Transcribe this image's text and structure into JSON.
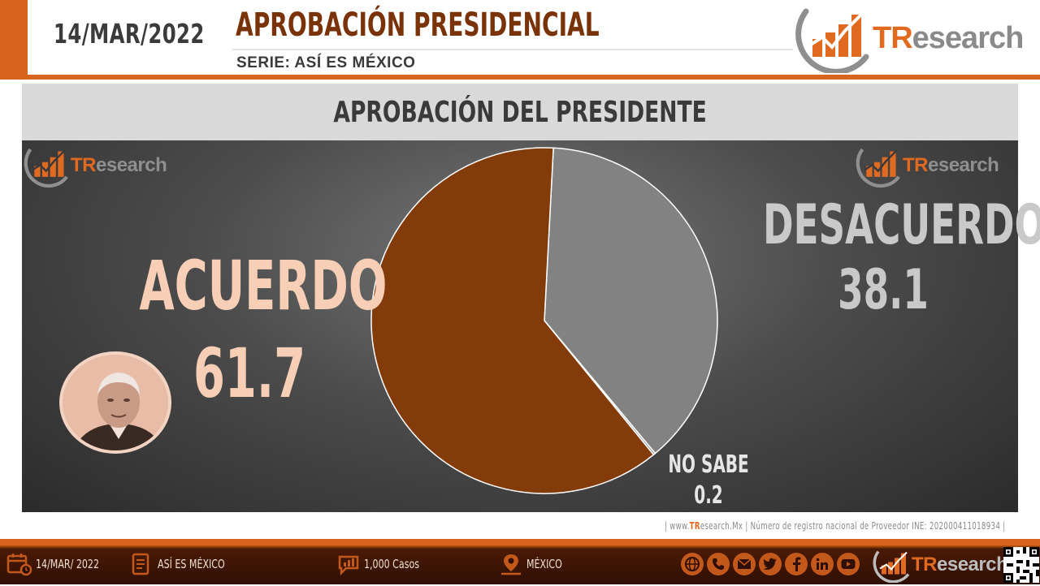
{
  "header": {
    "date": "14/MAR/2022",
    "title": "APROBACIÓN PRESIDENCIAL",
    "series": "SERIE: ASÍ ES MÉXICO"
  },
  "brand": {
    "logo_tr": "TR",
    "logo_rest": "esearch"
  },
  "chart_data": {
    "type": "pie",
    "title": "APROBACIÓN DEL PRESIDENTE",
    "categories": [
      "ACUERDO",
      "DESACUERDO",
      "NO SABE"
    ],
    "values": [
      61.7,
      38.1,
      0.2
    ],
    "value_labels": [
      "61.7",
      "38.1",
      "0.2"
    ],
    "colors": [
      "#843b0a",
      "#828282",
      "#9a9a9a"
    ]
  },
  "footer": {
    "credit_prefix": "| www.",
    "credit_tr": "TR",
    "credit_rest": "esearch.Mx  | Número de registro nacional de Proveedor INE: 202000411018934  |",
    "date": "14/MAR/ 2022",
    "series": "ASÍ ES MÉXICO",
    "cases": "1,000 Casos",
    "region": "MÉXICO",
    "social_icons": [
      "globe-icon",
      "phone-icon",
      "mail-icon",
      "twitter-icon",
      "facebook-icon",
      "linkedin-icon",
      "youtube-icon"
    ]
  }
}
